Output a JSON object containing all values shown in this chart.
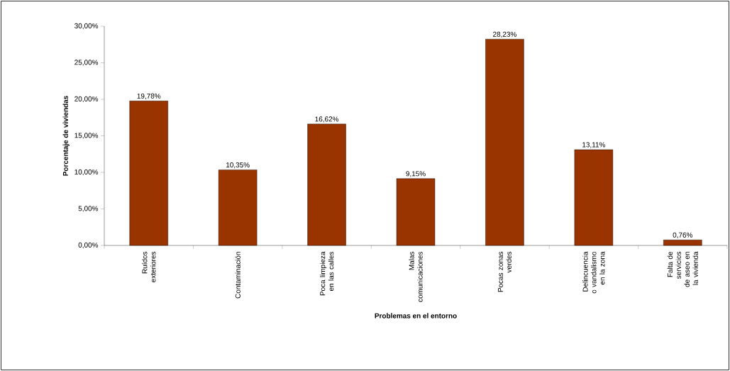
{
  "chart_data": {
    "type": "bar",
    "xlabel": "Problemas en el entorno",
    "ylabel": "Porcentaje de viviendas",
    "categories": [
      "Ruídos exteriores",
      "Contaminación",
      "Poca limpieza en las calles",
      "Malas comunicaciones",
      "Pocas zonas verdes",
      "Delincuencia o vandalismo en la zona",
      "Falta de servicios de aseo en la vivienda"
    ],
    "values": [
      19.78,
      10.35,
      16.62,
      9.15,
      28.23,
      13.11,
      0.76
    ],
    "value_labels": [
      "19,78%",
      "10,35%",
      "16,62%",
      "9,15%",
      "28,23%",
      "13,11%",
      "0,76%"
    ],
    "color": "#993300",
    "ylim": [
      0,
      30
    ],
    "yticks": [
      {
        "value": 0,
        "label": "0,00%"
      },
      {
        "value": 5,
        "label": "5,00%"
      },
      {
        "value": 10,
        "label": "10,00%"
      },
      {
        "value": 15,
        "label": "15,00%"
      },
      {
        "value": 20,
        "label": "20,00%"
      },
      {
        "value": 25,
        "label": "25,00%"
      },
      {
        "value": 30,
        "label": "30,00%"
      }
    ]
  }
}
